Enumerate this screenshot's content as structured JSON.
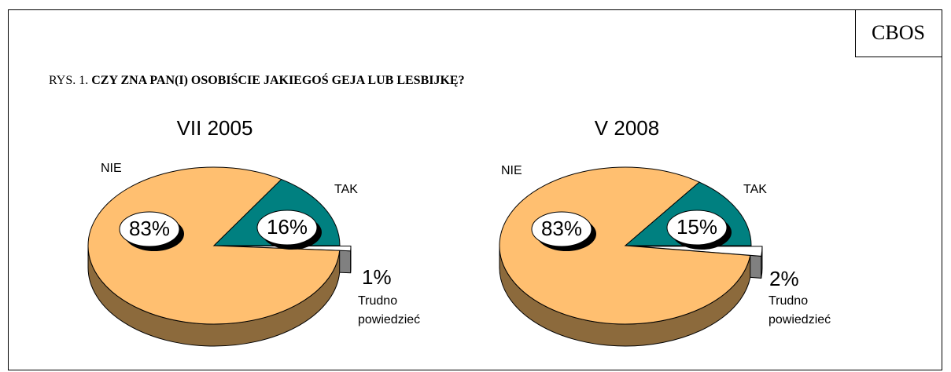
{
  "header": {
    "source": "CBOS",
    "figure": "RYS. 1.",
    "question": "CZY ZNA PAN(I) OSOBIŚCIE JAKIEGOŚ GEJA LUB LESBIJKĘ?"
  },
  "chart_data": [
    {
      "type": "pie",
      "title": "VII 2005",
      "categories": [
        "NIE",
        "TAK",
        "Trudno powiedzieć"
      ],
      "values": [
        83,
        16,
        1
      ],
      "value_labels": [
        "83%",
        "16%",
        "1%"
      ],
      "colors": [
        "#FFBF70",
        "#008080",
        "#FFFFFF"
      ]
    },
    {
      "type": "pie",
      "title": "V 2008",
      "categories": [
        "NIE",
        "TAK",
        "Trudno powiedzieć"
      ],
      "values": [
        83,
        15,
        2
      ],
      "value_labels": [
        "83%",
        "15%",
        "2%"
      ],
      "colors": [
        "#FFBF70",
        "#008080",
        "#FFFFFF"
      ]
    }
  ]
}
